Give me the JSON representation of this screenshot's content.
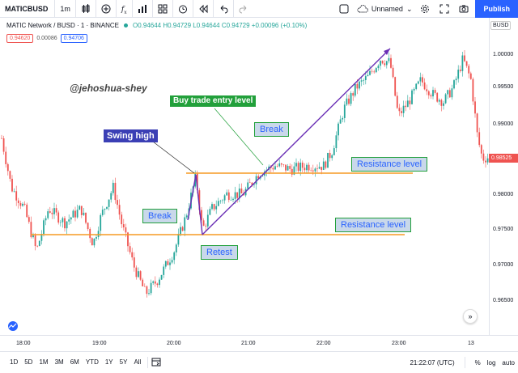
{
  "toolbar": {
    "symbol": "MATICBUSD",
    "interval": "1m",
    "publish_label": "Publish",
    "layout_name": "Unnamed"
  },
  "legend": {
    "title": "MATIC Network / BUSD · 1 · BINANCE",
    "ohlc": "O0.94644 H0.94729 L0.94644 C0.94729 +0.00096 (+0.10%)",
    "bid": "0.94620",
    "spread": "0.00086",
    "ask": "0.94706"
  },
  "price_scale": {
    "quote": "BUSD",
    "labels": [
      "1.00000",
      "0.99500",
      "0.99000",
      "0.98000",
      "0.97500",
      "0.97000",
      "0.96500"
    ],
    "last_price": "0.98525",
    "last_price_color": "#ef5350"
  },
  "time_scale": {
    "labels": [
      "18:00",
      "19:00",
      "20:00",
      "21:00",
      "22:00",
      "23:00",
      "13"
    ]
  },
  "annotations": {
    "watermark": "@jehoshua-shey",
    "buy_entry": "Buy trade entry level",
    "swing_high": "Swing high",
    "break_top": "Break",
    "break_left": "Break",
    "resistance_upper": "Resistance level",
    "resistance_lower": "Resistance level",
    "retest": "Retest"
  },
  "bottom_bar": {
    "ranges": [
      "1D",
      "5D",
      "1M",
      "3M",
      "6M",
      "YTD",
      "1Y",
      "5Y",
      "All"
    ],
    "clock": "21:22:07 (UTC)",
    "percent": "%",
    "log": "log",
    "auto": "auto"
  },
  "colors": {
    "up": "#26a69a",
    "down": "#ef5350",
    "resistance": "#f59a23",
    "trend": "#6a2fb5",
    "accent": "#2962ff"
  }
}
